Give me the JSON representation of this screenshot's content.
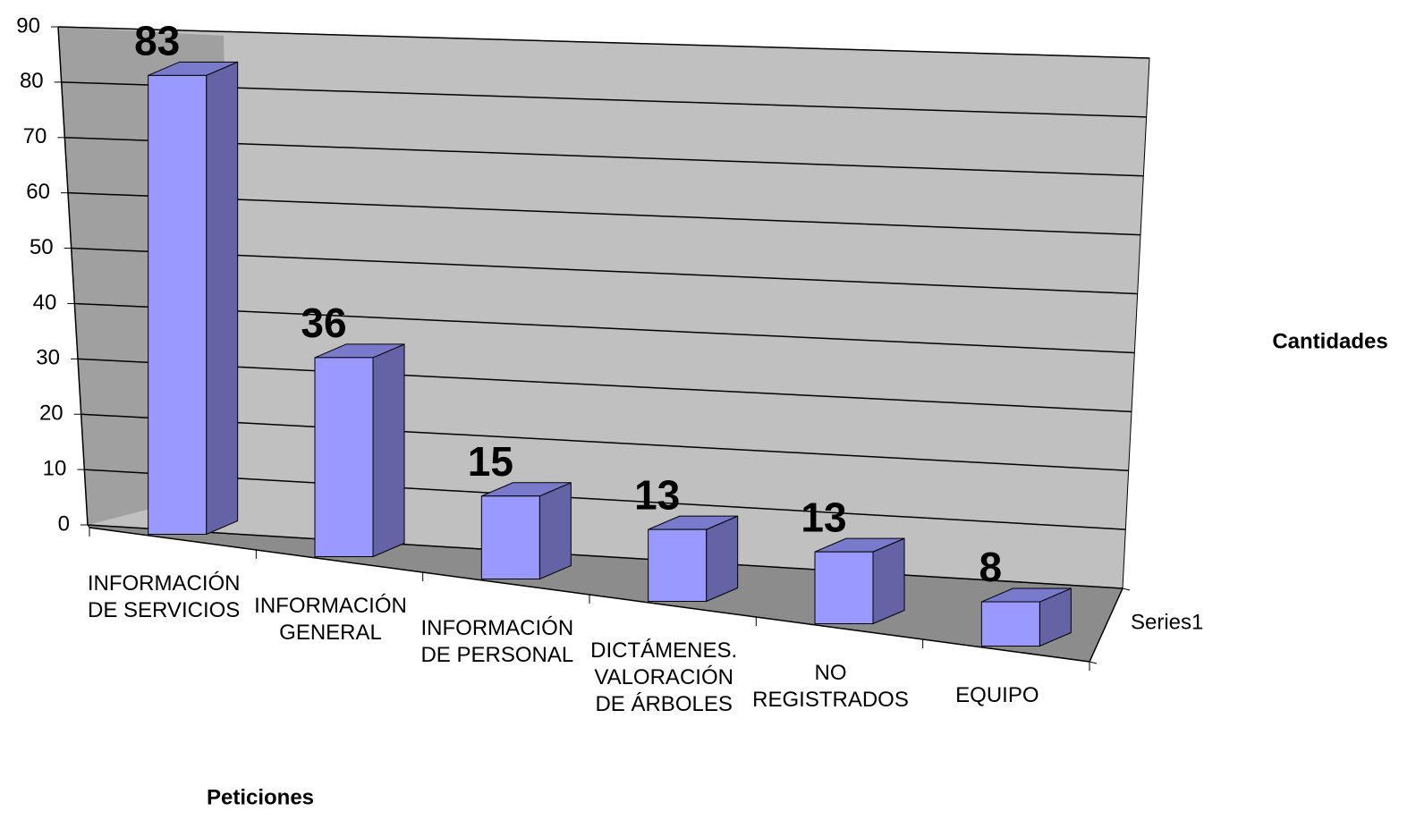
{
  "chart_data": {
    "type": "bar3d",
    "categories": [
      "INFORMACIÓN\nDE SERVICIOS",
      "INFORMACIÓN\nGENERAL",
      "INFORMACIÓN\nDE PERSONAL",
      "DICTÁMENES.\nVALORACIÓN\nDE ÁRBOLES",
      "NO\nREGISTRADOS",
      "EQUIPO"
    ],
    "series": [
      {
        "name": "Series1",
        "color": "#9999ff",
        "values": [
          83,
          36,
          15,
          13,
          13,
          8
        ]
      }
    ],
    "x_label": "Peticiones",
    "y_label": "Cantidades",
    "ylim": [
      0,
      90
    ],
    "yticks": [
      0,
      10,
      20,
      30,
      40,
      50,
      60,
      70,
      80,
      90
    ],
    "grid": true
  }
}
